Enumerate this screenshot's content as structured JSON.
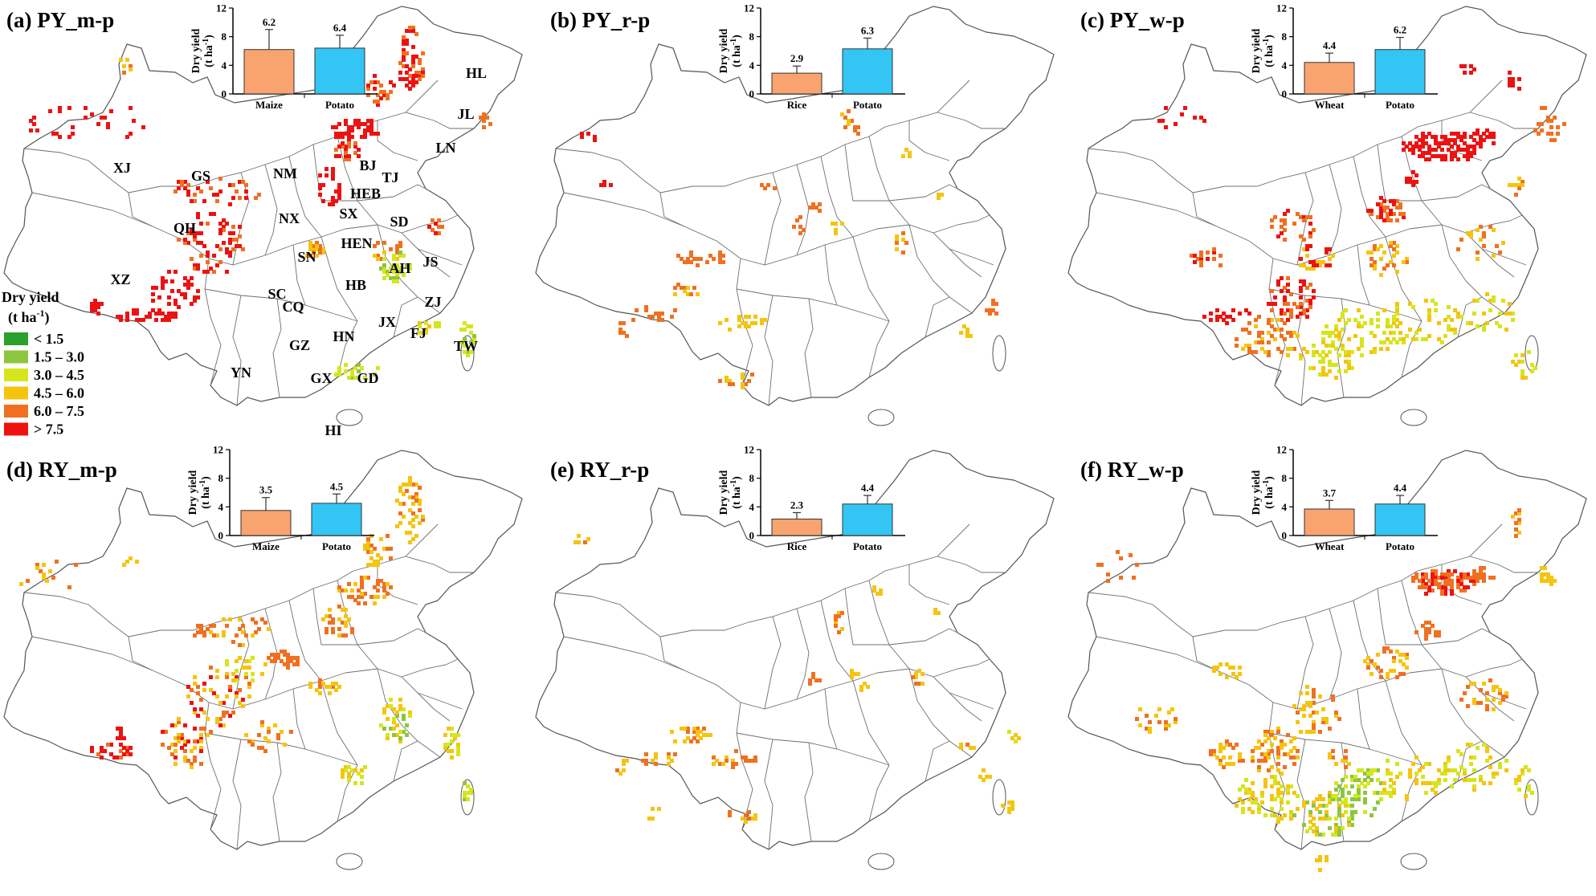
{
  "panels": [
    {
      "id": "a",
      "title": "(a) PY_m-p"
    },
    {
      "id": "b",
      "title": "(b) PY_r-p"
    },
    {
      "id": "c",
      "title": "(c) PY_w-p"
    },
    {
      "id": "d",
      "title": "(d) RY_m-p"
    },
    {
      "id": "e",
      "title": "(e) RY_r-p"
    },
    {
      "id": "f",
      "title": "(f) RY_w-p"
    }
  ],
  "provinces": [
    "HL",
    "JL",
    "LN",
    "BJ",
    "TJ",
    "HEB",
    "SD",
    "SX",
    "NM",
    "NX",
    "GS",
    "XJ",
    "QH",
    "XZ",
    "SC",
    "CQ",
    "SN",
    "HEN",
    "HB",
    "AH",
    "JS",
    "ZJ",
    "JX",
    "FJ",
    "TW",
    "GZ",
    "HN",
    "YN",
    "GX",
    "GD",
    "HI"
  ],
  "legend": {
    "title": "Dry yield",
    "unit": "(t ha",
    "unit_sup": "-1",
    "unit_close": ")",
    "classes": [
      {
        "label": "< 1.5",
        "color": "#2ca02c"
      },
      {
        "label": "1.5 – 3.0",
        "color": "#8cc63f"
      },
      {
        "label": "3.0 – 4.5",
        "color": "#d4e61c"
      },
      {
        "label": "4.5 – 6.0",
        "color": "#f5c40f"
      },
      {
        "label": "6.0 – 7.5",
        "color": "#f07020"
      },
      {
        "label": "> 7.5",
        "color": "#ee1111"
      }
    ]
  },
  "colors": {
    "crop": "#f9a36f",
    "potato": "#33c5f4",
    "boundary": "#6f6f6f"
  },
  "chart_data": [
    {
      "type": "bar",
      "panel": "a",
      "ylabel": "Dry yield",
      "yunit": "(t ha",
      "yunit_sup": "-1",
      "yunit_close": ")",
      "ylim": [
        0,
        12
      ],
      "yticks": [
        0,
        4,
        8,
        12
      ],
      "categories": [
        "Maize",
        "Potato"
      ],
      "values": [
        6.2,
        6.4
      ],
      "labels": [
        "6.2",
        "6.4"
      ],
      "errors": [
        2.8,
        1.8
      ]
    },
    {
      "type": "bar",
      "panel": "b",
      "ylabel": "Dry yield",
      "yunit": "(t ha",
      "yunit_sup": "-1",
      "yunit_close": ")",
      "ylim": [
        0,
        12
      ],
      "yticks": [
        0,
        4,
        8,
        12
      ],
      "categories": [
        "Rice",
        "Potato"
      ],
      "values": [
        2.9,
        6.3
      ],
      "labels": [
        "2.9",
        "6.3"
      ],
      "errors": [
        1.0,
        1.5
      ]
    },
    {
      "type": "bar",
      "panel": "c",
      "ylabel": "Dry yield",
      "yunit": "(t ha",
      "yunit_sup": "-1",
      "yunit_close": ")",
      "ylim": [
        0,
        12
      ],
      "yticks": [
        0,
        4,
        8,
        12
      ],
      "categories": [
        "Wheat",
        "Potato"
      ],
      "values": [
        4.4,
        6.2
      ],
      "labels": [
        "4.4",
        "6.2"
      ],
      "errors": [
        1.3,
        1.7
      ]
    },
    {
      "type": "bar",
      "panel": "d",
      "ylabel": "Dry yield",
      "yunit": "(t ha",
      "yunit_sup": "-1",
      "yunit_close": ")",
      "ylim": [
        0,
        12
      ],
      "yticks": [
        0,
        4,
        8,
        12
      ],
      "categories": [
        "Maize",
        "Potato"
      ],
      "values": [
        3.5,
        4.5
      ],
      "labels": [
        "3.5",
        "4.5"
      ],
      "errors": [
        1.8,
        1.3
      ]
    },
    {
      "type": "bar",
      "panel": "e",
      "ylabel": "Dry yield",
      "yunit": "(t ha",
      "yunit_sup": "-1",
      "yunit_close": ")",
      "ylim": [
        0,
        12
      ],
      "yticks": [
        0,
        4,
        8,
        12
      ],
      "categories": [
        "Rice",
        "Potato"
      ],
      "values": [
        2.3,
        4.4
      ],
      "labels": [
        "2.3",
        "4.4"
      ],
      "errors": [
        0.9,
        1.2
      ]
    },
    {
      "type": "bar",
      "panel": "f",
      "ylabel": "Dry yield",
      "yunit": "(t ha",
      "yunit_sup": "-1",
      "yunit_close": ")",
      "ylim": [
        0,
        12
      ],
      "yticks": [
        0,
        4,
        8,
        12
      ],
      "categories": [
        "Wheat",
        "Potato"
      ],
      "values": [
        3.7,
        4.4
      ],
      "labels": [
        "3.7",
        "4.4"
      ],
      "errors": [
        1.2,
        1.2
      ]
    }
  ]
}
